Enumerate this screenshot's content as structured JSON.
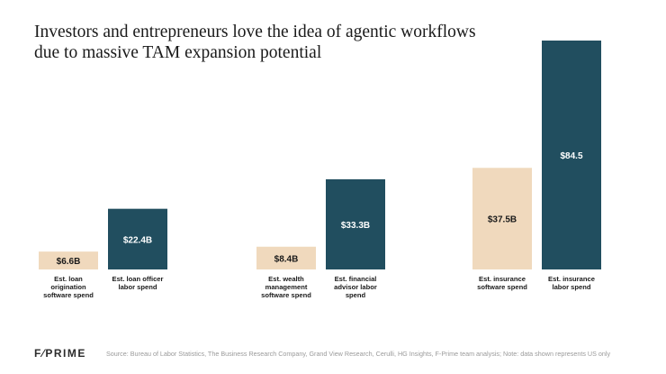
{
  "title_lines": [
    "Investors and entrepreneurs love the idea of agentic workflows",
    "due to massive TAM expansion potential"
  ],
  "footer": {
    "logo": "F⁄PRIME",
    "source": "Source: Bureau of Labor Statistics, The Business Research Company, Grand View Research, Cerulli, HG Insights, F-Prime team analysis; Note: data shown represents US only"
  },
  "colors": {
    "software": "#f0d9bd",
    "labor": "#214e5f",
    "software_label": "#1a1a1a",
    "labor_label": "#ffffff"
  },
  "chart_data": {
    "type": "bar",
    "ylim": [
      0,
      90
    ],
    "groups": [
      {
        "bars": [
          {
            "kind": "software",
            "value": 6.6,
            "value_label": "$6.6B",
            "category_lines": [
              "Est. loan",
              "origination",
              "software spend"
            ]
          },
          {
            "kind": "labor",
            "value": 22.4,
            "value_label": "$22.4B",
            "category_lines": [
              "Est. loan officer",
              "labor spend"
            ]
          }
        ]
      },
      {
        "bars": [
          {
            "kind": "software",
            "value": 8.4,
            "value_label": "$8.4B",
            "category_lines": [
              "Est. wealth",
              "management",
              "software spend"
            ]
          },
          {
            "kind": "labor",
            "value": 33.3,
            "value_label": "$33.3B",
            "category_lines": [
              "Est. financial",
              "advisor labor",
              "spend"
            ]
          }
        ]
      },
      {
        "bars": [
          {
            "kind": "software",
            "value": 37.5,
            "value_label": "$37.5B",
            "category_lines": [
              "Est. insurance",
              "software spend"
            ]
          },
          {
            "kind": "labor",
            "value": 84.5,
            "value_label": "$84.5",
            "category_lines": [
              "Est. insurance",
              "labor spend"
            ]
          }
        ]
      }
    ]
  }
}
